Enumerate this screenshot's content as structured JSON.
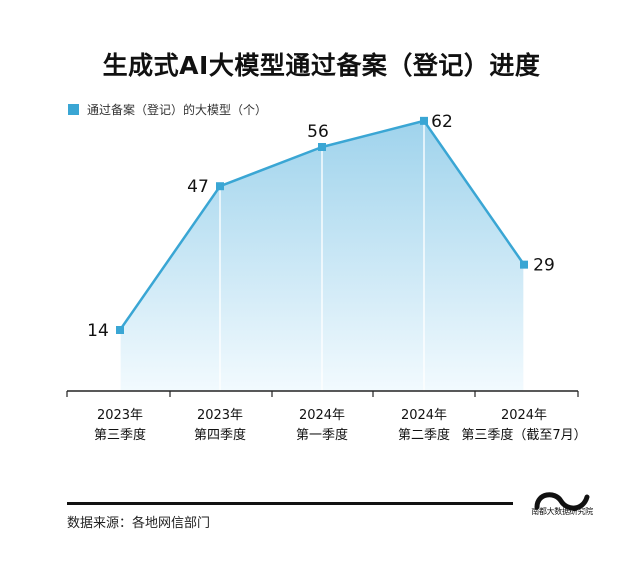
{
  "title": "生成式AI大模型通过备案（登记）进度",
  "legend_label": "通过备案（登记）的大模型（个）",
  "source": "数据来源：各地网信部门",
  "logo_text": "南都大数据研究院",
  "colors": {
    "accent": "#3aa6d4",
    "fill_top": "#9fd3ec",
    "fill_bottom": "#f2fafe",
    "axis": "#222222"
  },
  "chart_data": {
    "type": "area",
    "categories": [
      "2023年\n第三季度",
      "2023年\n第四季度",
      "2024年\n第一季度",
      "2024年\n第二季度",
      "2024年\n第三季度（截至7月）"
    ],
    "values": [
      14,
      47,
      56,
      62,
      29
    ],
    "title": "生成式AI大模型通过备案（登记）进度",
    "xlabel": "",
    "ylabel": "",
    "ylim": [
      0,
      70
    ],
    "grid": false,
    "legend": "top-left",
    "data_labels": true
  }
}
